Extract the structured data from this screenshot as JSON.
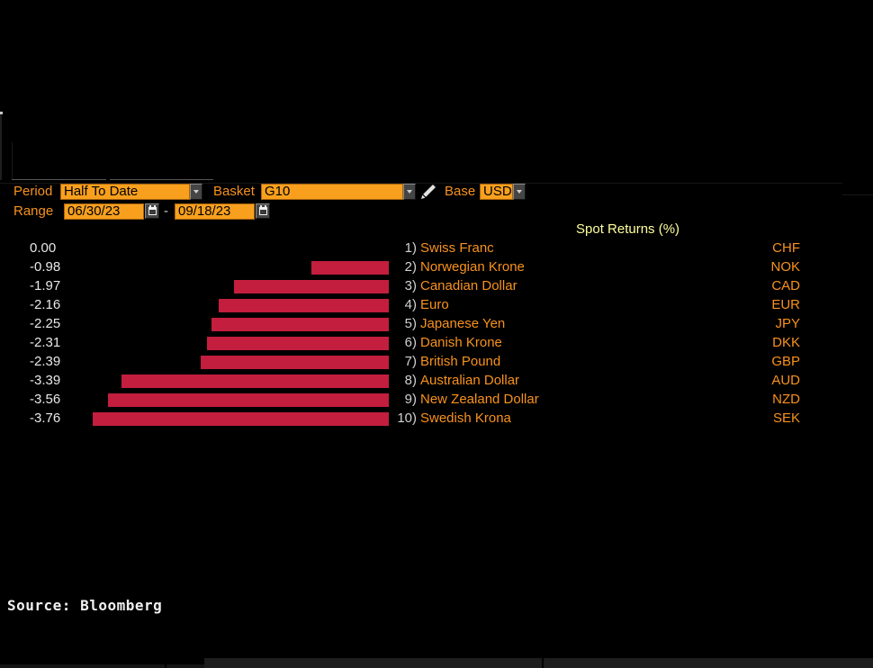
{
  "toolbar": {
    "period_label": "Period",
    "period_value": "Half To Date",
    "basket_label": "Basket",
    "basket_value": "G10",
    "base_label": "Base",
    "base_value": "USD",
    "range_label": "Range",
    "range_start": "06/30/23",
    "range_separator": "-",
    "range_end": "09/18/23"
  },
  "chart_data": {
    "type": "bar",
    "orientation": "horizontal",
    "title": "Spot Returns (%)",
    "categories": [
      "Swiss Franc",
      "Norwegian Krone",
      "Canadian Dollar",
      "Euro",
      "Japanese Yen",
      "Danish Krone",
      "British Pound",
      "Australian Dollar",
      "New Zealand Dollar",
      "Swedish Krona"
    ],
    "index_labels": [
      "1)",
      "2)",
      "3)",
      "4)",
      "5)",
      "6)",
      "7)",
      "8)",
      "9)",
      "10)"
    ],
    "codes": [
      "CHF",
      "NOK",
      "CAD",
      "EUR",
      "JPY",
      "DKK",
      "GBP",
      "AUD",
      "NZD",
      "SEK"
    ],
    "values": [
      0.0,
      -0.98,
      -1.97,
      -2.16,
      -2.25,
      -2.31,
      -2.39,
      -3.39,
      -3.56,
      -3.76
    ],
    "value_labels": [
      "0.00",
      "-0.98",
      "-1.97",
      "-2.16",
      "-2.25",
      "-2.31",
      "-2.39",
      "-3.39",
      "-3.56",
      "-3.76"
    ],
    "xlim": [
      -3.76,
      0
    ],
    "grid": false,
    "legend": "none",
    "bar_color": "#C31E3E"
  },
  "footer": {
    "source": "Source: Bloomberg"
  },
  "colors": {
    "accent_orange": "#F8921D",
    "field_orange": "#F8A01E",
    "title_yellow": "#FFFF9E",
    "bar_red": "#C31E3E",
    "background": "#000000"
  }
}
